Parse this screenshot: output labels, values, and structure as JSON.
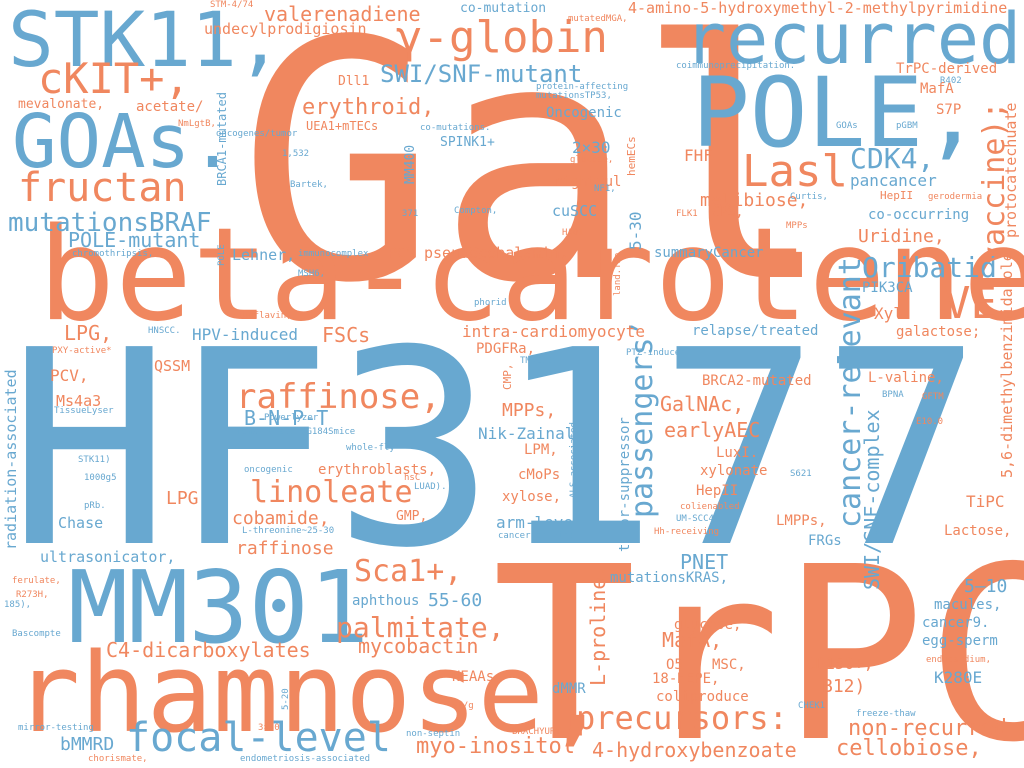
{
  "cloud": {
    "colors": {
      "orange": "#f0875f",
      "blue": "#68a8d0"
    },
    "words": {
      "Gal": "Gal",
      "HF3177": "HF3177",
      "TrPC": "TrPC",
      "beta_carotene": "beta-carotene’",
      "POLE": "POLE,",
      "recurred": "recurred",
      "STK11": "STK11,",
      "GOAs": "GOAs.",
      "MM301": "MM301",
      "rhamnose": "rhamnose,",
      "gamma_globin": "γ-globin",
      "cKIT": "cKIT+,",
      "fructan": "fructan",
      "mutationsBRAF": "mutationsBRAF",
      "POLE_mutant": "POLE-mutant",
      "SWI_SNF_mutant": "SWI/SNF-mutant",
      "valerenadiene": "valerenadiene",
      "undecylprodigiosin": "undecylprodigiosin",
      "amino_pyrimidine": "4-amino-5-hydroxymethyl-2-methylpyrimidine",
      "co_mutation": "co-mutation",
      "erythroid": "erythroid,",
      "Lasl": "Lasl",
      "CDK4": "CDK4,",
      "VE": "VE",
      "Oribatid": "Oribatid",
      "vaccine": "vaccine);",
      "raffinose_big": "raffinose,",
      "linoleate": "linoleate",
      "cobamide": "cobamide,",
      "raffinose_small": "raffinose",
      "Sca1": "Sca1+,",
      "palmitate": "palmitate,",
      "precursors": "precursors:",
      "focal_level": "focal-level",
      "myo_inositol": "myo-inositol",
      "hydroxybenzoate": "4-hydroxybenzoate",
      "cellobiose": "cellobiose,",
      "non_recurred": "non-recurred",
      "cancer_relevant": "cancer-relevant",
      "passengers": "passengers’",
      "SWI_SNF_complex": "SWI/SNF-complex",
      "dimethylbenzimidazole": "5,6-dimethylbenzimidazole",
      "protocatechuate": "protocatechuate",
      "mycobactin": "mycobactin",
      "C4_dicarboxylates": "C4-dicarboxylates",
      "B_N_P_T": "B-N-P-T",
      "FSCs": "FSCs",
      "LPG1": "LPG,",
      "LPG2": "LPG",
      "PCV": "PCV,",
      "QSSM": "QSSM",
      "Ms4a3": "Ms4a3",
      "Chase": "Chase",
      "ultrasonicator": "ultrasonicator,",
      "radiation_associated": "radiation-associated",
      "HPV_induced": "HPV-induced",
      "Lehner": "Lehner,",
      "PCV2": "PCV",
      "pseudocobalamin": "pseudocobalamin,",
      "intra_cardiomyocyte": "intra-cardiomyocyte",
      "PDGFRa": "PDGFRa,",
      "MPPs": "MPPs,",
      "LPM": "LPM,",
      "cMoPs": "cMoPs",
      "xylose": "xylose,",
      "arm_level": "arm-level",
      "Nik_Zainal": "Nik-Zainal",
      "GalNAc": "GalNAc,",
      "earlyAEC": "earlyAEC",
      "LuxI": "LuxI.",
      "xylonate": "xylonate",
      "HepII": "HepII",
      "PNET": "PNET",
      "mutationsKRAS": "mutationsKRAS,",
      "MafA1": "MafA,",
      "glucose": "glucose,",
      "O5": "O5",
      "MSC": "MSC,",
      "HEPE": "18-HEPE,",
      "coliproduce": "coliproduce",
      "L_proline": "L-proline,",
      "dMMR": "dMMR",
      "NEAAs": "NEAAs",
      "bMMRD": "bMMRD",
      "aphthous": "aphthous",
      "fifty_five": "55-60",
      "CD150": "CD150+,",
      "B12": "B12)",
      "K280E": "K280E",
      "egg_sperm": "egg-sperm",
      "cancer9": "cancer9.",
      "macules": "macules,",
      "five_ten": "5–10",
      "TiPC": "TiPC",
      "Lactose": "Lactose,",
      "LMPPs": "LMPPs,",
      "FRGs": "FRGs",
      "L_valine": "L-valine,",
      "BRCA2_mutated": "BRCA2-mutated",
      "Xyl": "Xyl",
      "galactose": "galactose;",
      "PIK3CA": "PIK3CA",
      "Uridine": "Uridine,",
      "co_occurring": "co-occurring",
      "pancancer": "pancancer",
      "melibiose": "melibiose,",
      "summaryCancer": "summaryCancer",
      "five_thirty": "5-30",
      "cuSCC": "cuSCC",
      "rightful": "rightful",
      "two_by_thirty": "2×30",
      "Oncogenic": "Oncogenic",
      "SPINK1": "SPINK1+",
      "FHF": "FHF",
      "CPS": "CPS,",
      "TrPC_derived": "TrPC-derived",
      "MafA2": "MafA",
      "S7P": "S7P",
      "acetate": "acetate/",
      "mevalonate": "mevalonate,",
      "Dll1": "Dll1",
      "UEA1": "UEA1+mTECs",
      "MM400": "MM400",
      "BRCA1_mutated": "BRCA1-mutated",
      "tumor_suppressor": "tumor-suppressor",
      "relapse_treated": "relapse/treated",
      "GMP": "GMP,",
      "erythroblasts": "erythroblasts,",
      "TissueLyser": "TissueLyser",
      "PXY_active": "PXY-active*",
      "HNSCC": "HNSCC.",
      "riboflavin": "riboflavin,",
      "immunocomplex": "immunocomplex",
      "chromothripsis": "chromothripsis,",
      "Bartek": "Bartek,",
      "n1532": "1,532",
      "n371": "371",
      "Compton": "Compton,",
      "phorid": "phorid",
      "PTZ_induced": "PTZ-induced",
      "TM00099": "TM00099",
      "CMP": "CMP,",
      "BPNA": "BPNA",
      "GFTM": "GFTM",
      "E10": "E10.0",
      "FLK1": "FLK1",
      "HA01": "HA01",
      "MPPs_small": "MPPs",
      "Curtis": "Curtis,",
      "gerodermia": "gerodermia",
      "HepII_small": "HepII",
      "GOAs_small": "GOAs",
      "pGBM": "pGBM",
      "R402": "R402",
      "coimmunoprecipitation": "coimmunoprecipitation.",
      "mutatedMGA": "mutatedMGA,",
      "STM": "STM-4/74",
      "NmLgtB": "NmLgtB,",
      "oncogenes_tumor": "oncogenes/tumor",
      "co_mutations": "co-mutations.",
      "protein_affecting": "protein-affecting",
      "mutationsTP53": "mutationsTP53,",
      "glucose_small": "glucose,",
      "hemECs": "hemECs",
      "NF1": "NF1,",
      "land_The": "land.The",
      "POLE_small": "POLE",
      "MSH6": "MSH6,",
      "Powerlyzer": "Powerlyzer",
      "femaleGnao": "femaleGnaoI+/G184Smice",
      "whole_fly": "whole-fly",
      "STK11_small": "STK11)",
      "n1000g5": "1000g5",
      "pRb": "pRb.",
      "oncogenic": "oncogenic",
      "L_threonine": "L-threonine~25-30",
      "ALS_associated": "ALS-associated",
      "hsc": "hsC",
      "LUAD": "LUAD).",
      "S621": "S621",
      "colienabled": "colienabled",
      "UM_SCC47": "UM-SCC47",
      "Hh_receiving": "Hh-receiving",
      "cancer_driving": "cancer-driving",
      "ferulate": "ferulate,",
      "R273H": "R273H,",
      "n185": "185),",
      "Bascompte": "Bascompte",
      "mirror_testing": "mirror-testing",
      "chorismate": "chorismate,",
      "n5_20": "5-20",
      "n3x30": "3×30",
      "non_septin": "non-septin",
      "endometriosis": "endometriosis-associated",
      "WE_g": "WE/g",
      "BRACHYURY": "BRACHYURY",
      "CHEK1": "CHEK1",
      "freeze_thaw": "freeze-thaw",
      "endocardium": "endocardium,"
    }
  }
}
